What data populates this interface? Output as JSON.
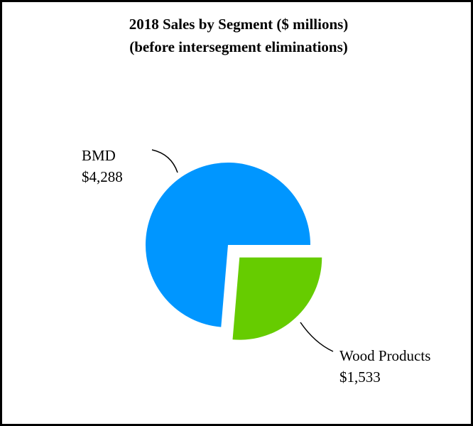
{
  "chart_data": {
    "type": "pie",
    "title": "2018 Sales by Segment ($ millions)",
    "subtitle": "(before intersegment eliminations)",
    "slices": [
      {
        "name": "BMD",
        "value": 4288,
        "value_label": "$4,288",
        "color": "#0096FF",
        "exploded": false
      },
      {
        "name": "Wood Products",
        "value": 1533,
        "value_label": "$1,533",
        "color": "#66CC00",
        "exploded": true
      }
    ],
    "legend": "none",
    "labels": "outside-with-leader-lines"
  }
}
